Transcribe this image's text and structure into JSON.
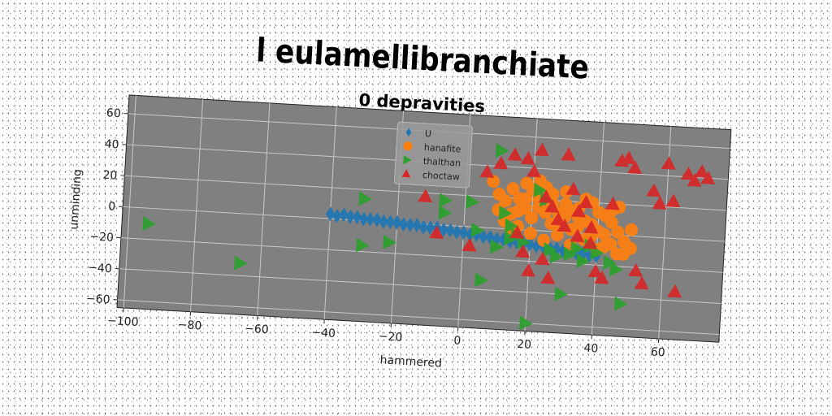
{
  "chart_data": {
    "type": "scatter",
    "title": "l eulamellibranchiate",
    "subtitle": "0 depravities",
    "xlabel": "hammered",
    "ylabel": "unminding",
    "xlim": [
      -102,
      78
    ],
    "ylim": [
      -65,
      72
    ],
    "x_ticks": [
      -100,
      -80,
      -60,
      -40,
      -20,
      0,
      20,
      40,
      60
    ],
    "y_ticks": [
      -60,
      -40,
      -20,
      0,
      20,
      40,
      60
    ],
    "grid": true,
    "legend_position": "top-center",
    "series": [
      {
        "name": "U",
        "marker": "diamond",
        "color": "#1f77b4",
        "points": [
          [
            -40,
            3
          ],
          [
            -38,
            2
          ],
          [
            -36,
            3
          ],
          [
            -34,
            2
          ],
          [
            -32,
            2
          ],
          [
            -30,
            1
          ],
          [
            -28,
            1
          ],
          [
            -26,
            1
          ],
          [
            -24,
            0
          ],
          [
            -22,
            0
          ],
          [
            -20,
            0
          ],
          [
            -18,
            -1
          ],
          [
            -16,
            -1
          ],
          [
            -14,
            -1
          ],
          [
            -12,
            -2
          ],
          [
            -10,
            -2
          ],
          [
            -8,
            -2
          ],
          [
            -6,
            -3
          ],
          [
            -4,
            -3
          ],
          [
            -2,
            -4
          ],
          [
            0,
            -4
          ],
          [
            2,
            -5
          ],
          [
            4,
            -5
          ],
          [
            6,
            -6
          ],
          [
            8,
            -6
          ],
          [
            10,
            -7
          ],
          [
            12,
            -7
          ],
          [
            14,
            -8
          ],
          [
            16,
            -8
          ],
          [
            18,
            -9
          ],
          [
            20,
            -9
          ],
          [
            22,
            -10
          ],
          [
            24,
            -10
          ],
          [
            26,
            -11
          ],
          [
            28,
            -11
          ],
          [
            30,
            -12
          ],
          [
            32,
            -12
          ],
          [
            34,
            -13
          ],
          [
            36,
            -13
          ],
          [
            38,
            -14
          ],
          [
            40,
            -14
          ]
        ]
      },
      {
        "name": "hanafite",
        "marker": "circle",
        "color": "#ff7f0e",
        "points": [
          [
            8,
            30
          ],
          [
            10,
            22
          ],
          [
            12,
            18
          ],
          [
            14,
            26
          ],
          [
            16,
            12
          ],
          [
            18,
            20
          ],
          [
            20,
            8
          ],
          [
            22,
            15
          ],
          [
            24,
            28
          ],
          [
            26,
            5
          ],
          [
            28,
            12
          ],
          [
            30,
            18
          ],
          [
            32,
            2
          ],
          [
            34,
            10
          ],
          [
            36,
            22
          ],
          [
            38,
            6
          ],
          [
            40,
            14
          ],
          [
            42,
            0
          ],
          [
            44,
            8
          ],
          [
            46,
            18
          ],
          [
            48,
            -4
          ],
          [
            50,
            4
          ],
          [
            12,
            5
          ],
          [
            16,
            2
          ],
          [
            20,
            -2
          ],
          [
            24,
            -6
          ],
          [
            28,
            -2
          ],
          [
            32,
            -8
          ],
          [
            36,
            -4
          ],
          [
            40,
            -10
          ],
          [
            44,
            -6
          ],
          [
            48,
            -12
          ],
          [
            14,
            10
          ],
          [
            18,
            14
          ],
          [
            22,
            20
          ],
          [
            26,
            24
          ],
          [
            30,
            10
          ],
          [
            34,
            16
          ],
          [
            38,
            20
          ],
          [
            42,
            12
          ],
          [
            46,
            2
          ],
          [
            18,
            30
          ],
          [
            22,
            32
          ],
          [
            26,
            18
          ],
          [
            30,
            26
          ],
          [
            34,
            4
          ],
          [
            38,
            -2
          ],
          [
            42,
            -8
          ],
          [
            46,
            -12
          ],
          [
            50,
            -8
          ],
          [
            20,
            26
          ],
          [
            24,
            12
          ],
          [
            28,
            6
          ],
          [
            32,
            14
          ],
          [
            36,
            8
          ],
          [
            40,
            2
          ],
          [
            44,
            16
          ],
          [
            10,
            12
          ],
          [
            14,
            0
          ],
          [
            16,
            20
          ]
        ]
      },
      {
        "name": "thalthan",
        "marker": "triangle-right",
        "color": "#2ca02c",
        "points": [
          [
            -94,
            -10
          ],
          [
            -66,
            -32
          ],
          [
            -30,
            14
          ],
          [
            -30,
            -16
          ],
          [
            -22,
            -13
          ],
          [
            -6,
            8
          ],
          [
            -6,
            16
          ],
          [
            2,
            16
          ],
          [
            4,
            -2
          ],
          [
            6,
            -34
          ],
          [
            10,
            50
          ],
          [
            12,
            10
          ],
          [
            14,
            2
          ],
          [
            16,
            -4
          ],
          [
            18,
            -8
          ],
          [
            20,
            -60
          ],
          [
            22,
            26
          ],
          [
            24,
            20
          ],
          [
            26,
            -12
          ],
          [
            28,
            -16
          ],
          [
            30,
            -40
          ],
          [
            32,
            -14
          ],
          [
            34,
            -10
          ],
          [
            36,
            -18
          ],
          [
            38,
            -8
          ],
          [
            40,
            -12
          ],
          [
            44,
            -18
          ],
          [
            46,
            -22
          ],
          [
            48,
            -44
          ],
          [
            14,
            -6
          ],
          [
            10,
            -12
          ]
        ]
      },
      {
        "name": "choctaw",
        "marker": "triangle-up",
        "color": "#d62728",
        "points": [
          [
            -12,
            18
          ],
          [
            -8,
            -5
          ],
          [
            2,
            -12
          ],
          [
            6,
            36
          ],
          [
            10,
            42
          ],
          [
            14,
            48
          ],
          [
            18,
            46
          ],
          [
            20,
            38
          ],
          [
            22,
            52
          ],
          [
            24,
            22
          ],
          [
            26,
            16
          ],
          [
            28,
            8
          ],
          [
            30,
            50
          ],
          [
            32,
            28
          ],
          [
            34,
            14
          ],
          [
            36,
            20
          ],
          [
            38,
            4
          ],
          [
            40,
            -24
          ],
          [
            42,
            -28
          ],
          [
            44,
            20
          ],
          [
            46,
            48
          ],
          [
            48,
            50
          ],
          [
            50,
            44
          ],
          [
            52,
            -22
          ],
          [
            54,
            -30
          ],
          [
            56,
            30
          ],
          [
            58,
            22
          ],
          [
            60,
            48
          ],
          [
            62,
            24
          ],
          [
            64,
            -34
          ],
          [
            66,
            42
          ],
          [
            68,
            38
          ],
          [
            70,
            44
          ],
          [
            72,
            40
          ],
          [
            26,
            -30
          ],
          [
            20,
            -26
          ],
          [
            18,
            -14
          ],
          [
            16,
            -2
          ],
          [
            24,
            -18
          ],
          [
            30,
            4
          ],
          [
            34,
            -2
          ],
          [
            38,
            -6
          ]
        ]
      }
    ]
  }
}
